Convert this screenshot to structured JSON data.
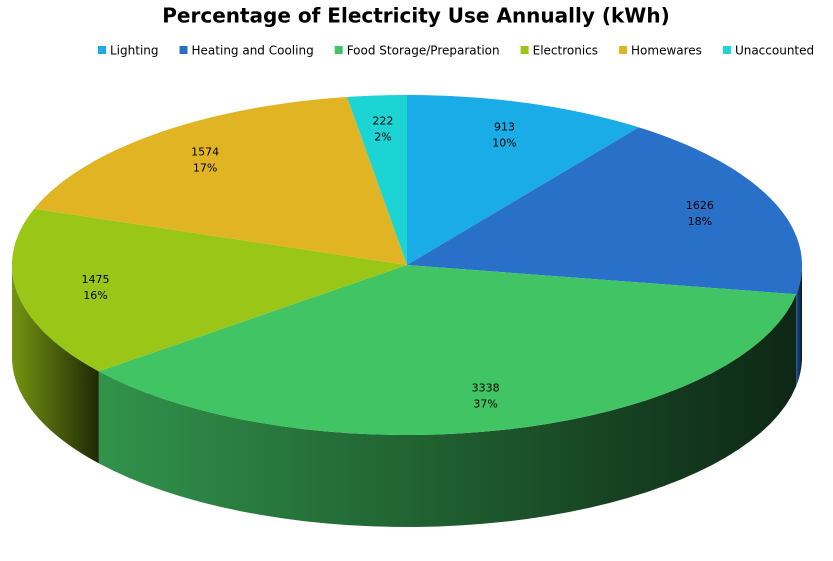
{
  "chart_data": {
    "type": "pie3d",
    "title": "Percentage of Electricity Use Annually (kWh)",
    "categories": [
      "Lighting",
      "Heating and Cooling",
      "Food Storage/Preparation",
      "Electronics",
      "Homewares",
      "Unaccounted"
    ],
    "values": [
      913,
      1626,
      3338,
      1475,
      1574,
      222
    ],
    "percent_labels": [
      "10%",
      "18%",
      "37%",
      "16%",
      "17%",
      "2%"
    ],
    "colors": [
      "#1aace6",
      "#2870c8",
      "#41c464",
      "#9ac617",
      "#e1b423",
      "#1dd4d4"
    ],
    "legend": "top"
  }
}
